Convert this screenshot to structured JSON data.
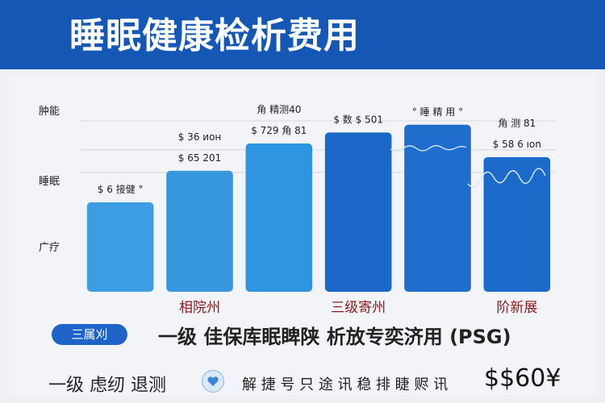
{
  "header": {
    "title": "睡眠健康检析费用"
  },
  "chart_data": {
    "type": "bar",
    "y_tick_labels": [
      "肿能",
      "睡眠",
      "广疗"
    ],
    "categories": [
      "",
      "",
      "",
      "",
      "",
      ""
    ],
    "values": [
      105,
      142,
      174,
      187,
      196,
      158
    ],
    "ylim": [
      0,
      210
    ],
    "bar_colors": [
      "#3d9de2",
      "#3798de",
      "#2e95e0",
      "#1a67c8",
      "#1f6dcd",
      "#1c6bcb"
    ],
    "data_labels": [
      [
        "$ 6 接健 °"
      ],
      [
        "$ 36 ион",
        "$ 65 201"
      ],
      [
        "角 精测40",
        "$ 729 角 81"
      ],
      [
        "$ 数 $ 501"
      ],
      [
        "° 睡 精 用 °"
      ],
      [
        "角 测 81",
        "$ 58 6 ıon"
      ]
    ],
    "group_labels": [
      {
        "text": "相院州",
        "color": "#8c1a1a",
        "under": 1
      },
      {
        "text": "三级寄州",
        "color": "#8c1a1a",
        "under": 3
      },
      {
        "text": "阶新展",
        "color": "#8c1a1a",
        "under": 5
      }
    ]
  },
  "footer": {
    "tag": "三属刈",
    "caption": "一级  佳保库眠睥陕 析放专奕济用 (PSG)",
    "left_text": "一级 虑纫 退测",
    "mid_text": "解 捷 号 只 途 讯 稳 排 睫 赆 讯",
    "price": "$$60¥"
  },
  "colors": {
    "banner": "#1457b4",
    "accent": "#1d63c8",
    "group_label": "#8c1a1a"
  }
}
